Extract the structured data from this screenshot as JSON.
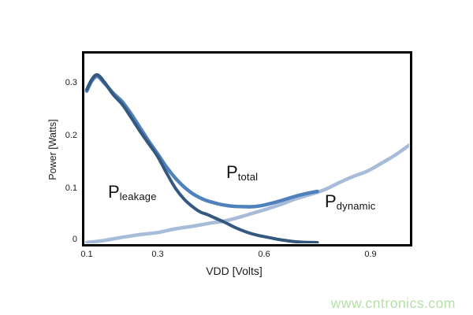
{
  "chart_data": {
    "type": "line",
    "title": "",
    "xlabel": "VDD [Volts]",
    "ylabel": "Power [Watts]",
    "xlim": [
      0.1,
      1.02
    ],
    "ylim": [
      0,
      0.36
    ],
    "grid": false,
    "legend": "inline-annotations",
    "x_tick_labels": [
      "0.1",
      "0.3",
      "0.6",
      "0.9"
    ],
    "x_tick_values": [
      0.1,
      0.3,
      0.6,
      0.9
    ],
    "y_tick_labels": [
      "0.3",
      "0.2",
      "0.1",
      "0"
    ],
    "y_tick_values": [
      0.3,
      0.2,
      0.1,
      0
    ],
    "series": [
      {
        "name": "P_dynamic",
        "label_main": "P",
        "label_sub": "dynamic",
        "color": "#a6bcd8",
        "stroke_width": 4.5,
        "points": [
          [
            0.1,
            0.0
          ],
          [
            0.15,
            0.004
          ],
          [
            0.2,
            0.01
          ],
          [
            0.25,
            0.015
          ],
          [
            0.3,
            0.019
          ],
          [
            0.35,
            0.026
          ],
          [
            0.4,
            0.031
          ],
          [
            0.45,
            0.037
          ],
          [
            0.49,
            0.041
          ],
          [
            0.53,
            0.048
          ],
          [
            0.57,
            0.056
          ],
          [
            0.61,
            0.064
          ],
          [
            0.65,
            0.073
          ],
          [
            0.69,
            0.083
          ],
          [
            0.73,
            0.091
          ],
          [
            0.77,
            0.1
          ],
          [
            0.81,
            0.113
          ],
          [
            0.85,
            0.125
          ],
          [
            0.89,
            0.135
          ],
          [
            0.93,
            0.15
          ],
          [
            0.97,
            0.166
          ],
          [
            1.02,
            0.19
          ]
        ]
      },
      {
        "name": "P_total",
        "label_main": "P",
        "label_sub": "total",
        "color": "#4f81bd",
        "stroke_width": 4.5,
        "points": [
          [
            0.1,
            0.287
          ],
          [
            0.115,
            0.307
          ],
          [
            0.13,
            0.315
          ],
          [
            0.15,
            0.302
          ],
          [
            0.175,
            0.283
          ],
          [
            0.2,
            0.267
          ],
          [
            0.225,
            0.244
          ],
          [
            0.25,
            0.218
          ],
          [
            0.275,
            0.192
          ],
          [
            0.3,
            0.168
          ],
          [
            0.325,
            0.143
          ],
          [
            0.35,
            0.122
          ],
          [
            0.375,
            0.105
          ],
          [
            0.4,
            0.092
          ],
          [
            0.425,
            0.083
          ],
          [
            0.45,
            0.077
          ],
          [
            0.48,
            0.072
          ],
          [
            0.51,
            0.069
          ],
          [
            0.54,
            0.068
          ],
          [
            0.57,
            0.068
          ],
          [
            0.6,
            0.071
          ],
          [
            0.63,
            0.076
          ],
          [
            0.66,
            0.082
          ],
          [
            0.69,
            0.088
          ],
          [
            0.72,
            0.093
          ],
          [
            0.75,
            0.097
          ]
        ]
      },
      {
        "name": "P_leakage",
        "label_main": "P",
        "label_sub": "leakage",
        "color": "#35597e",
        "stroke_width": 4,
        "points": [
          [
            0.1,
            0.29
          ],
          [
            0.115,
            0.31
          ],
          [
            0.13,
            0.318
          ],
          [
            0.15,
            0.304
          ],
          [
            0.175,
            0.28
          ],
          [
            0.2,
            0.262
          ],
          [
            0.225,
            0.237
          ],
          [
            0.25,
            0.211
          ],
          [
            0.275,
            0.187
          ],
          [
            0.3,
            0.163
          ],
          [
            0.325,
            0.132
          ],
          [
            0.35,
            0.103
          ],
          [
            0.375,
            0.082
          ],
          [
            0.4,
            0.067
          ],
          [
            0.42,
            0.058
          ],
          [
            0.44,
            0.053
          ],
          [
            0.46,
            0.047
          ],
          [
            0.49,
            0.038
          ],
          [
            0.52,
            0.028
          ],
          [
            0.55,
            0.02
          ],
          [
            0.58,
            0.014
          ],
          [
            0.61,
            0.01
          ],
          [
            0.64,
            0.006
          ],
          [
            0.67,
            0.003
          ],
          [
            0.7,
            0.001
          ],
          [
            0.75,
            0.0
          ]
        ]
      }
    ]
  },
  "watermark": {
    "text": "www.cntronics.com",
    "color": "#b5dfa8"
  }
}
